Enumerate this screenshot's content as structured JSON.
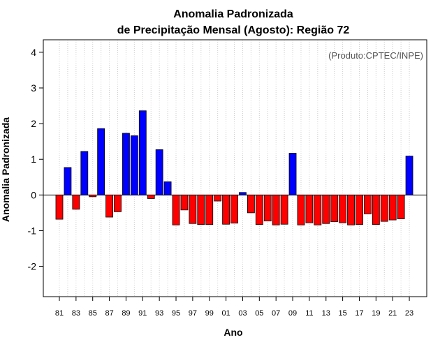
{
  "chart_data": {
    "type": "bar",
    "title_line1": "Anomalia Padronizada",
    "title_line2": "de Precipitação Mensal (Agosto): Região 72",
    "xlabel": "Ano",
    "ylabel": "Anomalia Padronizada",
    "annotation": "(Produto:CPTEC/INPE)",
    "ylim": [
      -2.85,
      4.35
    ],
    "yticks": [
      -2,
      -1,
      0,
      1,
      2,
      3,
      4
    ],
    "grid": "vertical dotted per year",
    "colors": {
      "positive": "#0000ff",
      "negative": "#ff0000"
    },
    "categories": [
      "81",
      "82",
      "83",
      "84",
      "85",
      "86",
      "87",
      "88",
      "89",
      "90",
      "91",
      "92",
      "93",
      "94",
      "95",
      "96",
      "97",
      "98",
      "99",
      "00",
      "01",
      "02",
      "03",
      "04",
      "05",
      "06",
      "07",
      "08",
      "09",
      "10",
      "11",
      "12",
      "13",
      "14",
      "15",
      "16",
      "17",
      "18",
      "19",
      "20",
      "21",
      "22",
      "23"
    ],
    "x_tick_labels": [
      "81",
      "83",
      "85",
      "87",
      "89",
      "91",
      "93",
      "95",
      "97",
      "99",
      "01",
      "03",
      "05",
      "07",
      "09",
      "11",
      "13",
      "15",
      "17",
      "19",
      "21",
      "23"
    ],
    "values": [
      -0.68,
      0.77,
      -0.4,
      1.22,
      -0.05,
      1.86,
      -0.62,
      -0.47,
      1.73,
      1.66,
      2.36,
      -0.1,
      1.27,
      0.37,
      -0.84,
      -0.42,
      -0.8,
      -0.83,
      -0.83,
      -0.17,
      -0.82,
      -0.79,
      0.07,
      -0.5,
      -0.83,
      -0.73,
      -0.84,
      -0.82,
      1.17,
      -0.84,
      -0.78,
      -0.84,
      -0.8,
      -0.75,
      -0.78,
      -0.84,
      -0.83,
      -0.53,
      -0.83,
      -0.74,
      -0.7,
      -0.67,
      1.09
    ]
  }
}
